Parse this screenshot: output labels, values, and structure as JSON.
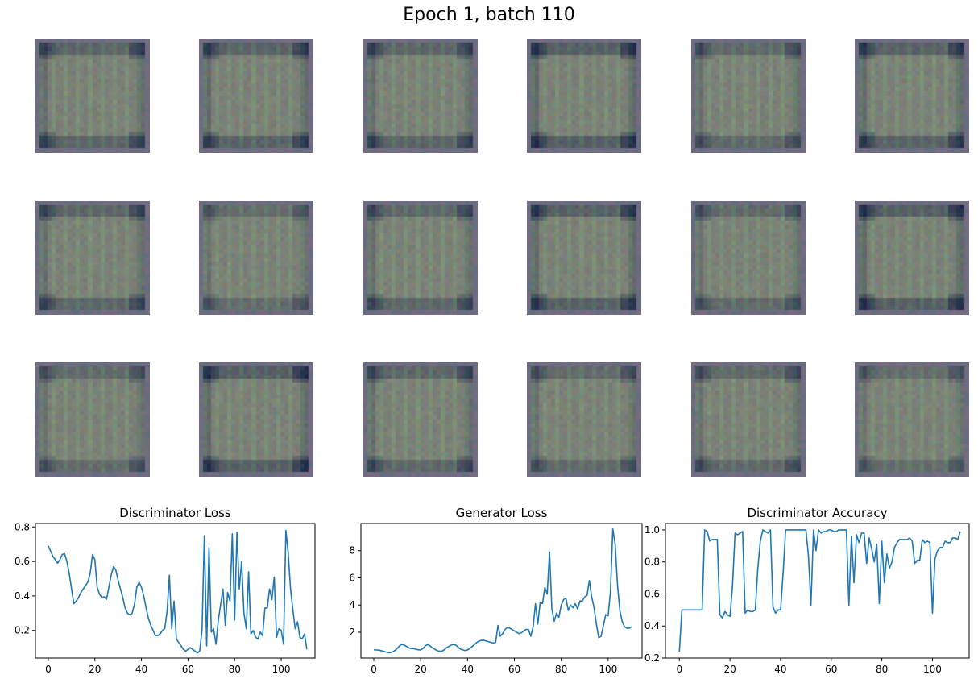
{
  "figure": {
    "suptitle": "Epoch 1, batch 110",
    "line_color": "#1f77b4",
    "sample_grid": {
      "rows": 3,
      "cols": 6,
      "description": "generated sample images"
    }
  },
  "chart_data": [
    {
      "type": "line",
      "title": "Discriminator Loss",
      "xlabel": "",
      "ylabel": "",
      "xlim": [
        -5.5,
        114.5
      ],
      "ylim": [
        0.04,
        0.82
      ],
      "xticks": [
        0,
        20,
        40,
        60,
        80,
        100
      ],
      "yticks": [
        0.2,
        0.4,
        0.6,
        0.8
      ],
      "ytick_labels": [
        "0.2",
        "0.4",
        "0.6",
        "0.8"
      ],
      "series": [
        {
          "values": [
            0.69,
            0.66,
            0.63,
            0.61,
            0.59,
            0.61,
            0.64,
            0.645,
            0.6,
            0.53,
            0.44,
            0.355,
            0.37,
            0.39,
            0.42,
            0.44,
            0.46,
            0.48,
            0.53,
            0.64,
            0.61,
            0.45,
            0.41,
            0.39,
            0.395,
            0.38,
            0.45,
            0.52,
            0.57,
            0.55,
            0.49,
            0.44,
            0.39,
            0.33,
            0.3,
            0.29,
            0.3,
            0.35,
            0.45,
            0.48,
            0.45,
            0.4,
            0.33,
            0.27,
            0.23,
            0.2,
            0.17,
            0.17,
            0.18,
            0.2,
            0.21,
            0.31,
            0.52,
            0.21,
            0.37,
            0.15,
            0.13,
            0.11,
            0.09,
            0.08,
            0.09,
            0.1,
            0.09,
            0.08,
            0.07,
            0.08,
            0.2,
            0.75,
            0.11,
            0.68,
            0.19,
            0.21,
            0.12,
            0.26,
            0.35,
            0.44,
            0.23,
            0.42,
            0.37,
            0.76,
            0.26,
            0.77,
            0.44,
            0.6,
            0.3,
            0.21,
            0.54,
            0.18,
            0.2,
            0.16,
            0.15,
            0.19,
            0.17,
            0.33,
            0.33,
            0.44,
            0.38,
            0.51,
            0.16,
            0.21,
            0.2,
            0.12,
            0.78,
            0.65,
            0.44,
            0.32,
            0.21,
            0.25,
            0.16,
            0.15,
            0.18,
            0.09
          ]
        }
      ]
    },
    {
      "type": "line",
      "title": "Generator Loss",
      "xlabel": "",
      "ylabel": "",
      "xlim": [
        -5.5,
        114.5
      ],
      "ylim": [
        0.1,
        10.0
      ],
      "xticks": [
        0,
        20,
        40,
        60,
        80,
        100
      ],
      "yticks": [
        2,
        4,
        6,
        8
      ],
      "ytick_labels": [
        "2",
        "4",
        "6",
        "8"
      ],
      "series": [
        {
          "values": [
            0.7,
            0.7,
            0.68,
            0.65,
            0.6,
            0.55,
            0.5,
            0.5,
            0.55,
            0.65,
            0.8,
            1.0,
            1.1,
            1.05,
            0.95,
            0.85,
            0.8,
            0.8,
            0.75,
            0.7,
            0.7,
            0.8,
            1.0,
            1.1,
            1.0,
            0.85,
            0.75,
            0.65,
            0.6,
            0.6,
            0.7,
            0.85,
            0.95,
            1.05,
            1.1,
            1.05,
            0.9,
            0.75,
            0.7,
            0.65,
            0.7,
            0.8,
            0.95,
            1.1,
            1.25,
            1.35,
            1.4,
            1.4,
            1.35,
            1.3,
            1.25,
            1.2,
            1.25,
            2.5,
            1.7,
            1.9,
            2.2,
            2.35,
            2.3,
            2.2,
            2.1,
            2.0,
            1.9,
            1.95,
            2.1,
            2.2,
            2.2,
            1.7,
            2.4,
            4.1,
            2.6,
            4.2,
            4.1,
            5.3,
            4.8,
            7.9,
            3.7,
            2.8,
            3.4,
            3.1,
            4.0,
            4.4,
            4.5,
            3.6,
            4.0,
            3.8,
            4.1,
            3.7,
            4.3,
            4.3,
            4.6,
            4.7,
            5.8,
            4.6,
            3.8,
            2.6,
            1.6,
            1.7,
            2.5,
            3.3,
            3.2,
            5.0,
            9.6,
            8.5,
            5.5,
            3.6,
            2.8,
            2.4,
            2.3,
            2.3,
            2.4
          ]
        }
      ]
    },
    {
      "type": "line",
      "title": "Discriminator Accuracy",
      "xlabel": "",
      "ylabel": "",
      "xlim": [
        -5.5,
        114.5
      ],
      "ylim": [
        0.2,
        1.04
      ],
      "xticks": [
        0,
        20,
        40,
        60,
        80,
        100
      ],
      "yticks": [
        0.2,
        0.4,
        0.6,
        0.8,
        1.0
      ],
      "ytick_labels": [
        "0.2",
        "0.4",
        "0.6",
        "0.8",
        "1.0"
      ],
      "series": [
        {
          "values": [
            0.24,
            0.5,
            0.5,
            0.5,
            0.5,
            0.5,
            0.5,
            0.5,
            0.5,
            0.5,
            1.0,
            0.99,
            0.93,
            0.94,
            0.94,
            0.94,
            0.47,
            0.45,
            0.49,
            0.47,
            0.46,
            0.65,
            0.98,
            0.97,
            0.98,
            0.99,
            0.48,
            0.5,
            0.49,
            0.49,
            0.5,
            0.76,
            0.93,
            1.0,
            0.99,
            0.98,
            1.0,
            0.52,
            0.48,
            0.5,
            0.5,
            0.73,
            1.0,
            1.0,
            1.0,
            1.0,
            1.0,
            1.0,
            1.0,
            1.0,
            1.0,
            0.84,
            0.53,
            1.0,
            0.87,
            1.0,
            0.98,
            0.99,
            0.99,
            1.0,
            1.0,
            0.99,
            0.99,
            1.0,
            1.0,
            1.0,
            1.0,
            0.53,
            0.96,
            0.67,
            0.97,
            0.92,
            0.98,
            0.98,
            0.79,
            0.95,
            0.88,
            0.8,
            0.91,
            0.54,
            0.93,
            0.67,
            0.85,
            0.76,
            0.8,
            0.89,
            0.92,
            0.94,
            0.94,
            0.94,
            0.94,
            0.95,
            0.93,
            0.79,
            0.81,
            0.81,
            0.94,
            0.92,
            0.93,
            0.92,
            0.48,
            0.82,
            0.87,
            0.89,
            0.89,
            0.93,
            0.92,
            0.92,
            0.95,
            0.95,
            0.94,
            0.99
          ]
        }
      ]
    }
  ]
}
